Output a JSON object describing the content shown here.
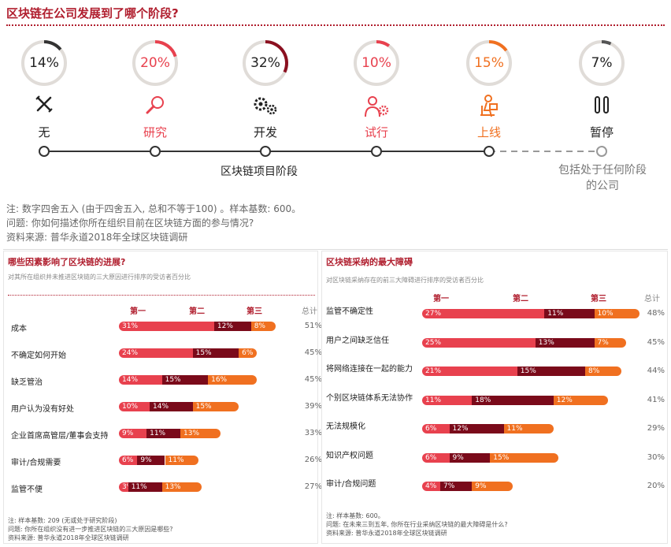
{
  "header": {
    "title": "区块链在公司发展到了哪个阶段?"
  },
  "stages": [
    {
      "pct": "14%",
      "name": "无",
      "value": 14,
      "ring_color": "#333333",
      "icon": "x-icon",
      "name_color": "#222222"
    },
    {
      "pct": "20%",
      "name": "研究",
      "value": 20,
      "ring_color": "#e8414e",
      "icon": "magnifier-icon",
      "name_color": "#e8414e"
    },
    {
      "pct": "32%",
      "name": "开发",
      "value": 32,
      "ring_color": "#8b1020",
      "icon": "gears-icon",
      "name_color": "#222222"
    },
    {
      "pct": "10%",
      "name": "试行",
      "value": 10,
      "ring_color": "#e8414e",
      "icon": "person-gear-icon",
      "name_color": "#e8414e"
    },
    {
      "pct": "15%",
      "name": "上线",
      "value": 15,
      "ring_color": "#f07020",
      "icon": "person-laptop-icon",
      "name_color": "#f07020"
    },
    {
      "pct": "7%",
      "name": "暂停",
      "value": 7,
      "ring_color": "#555555",
      "icon": "pause-icon",
      "name_color": "#222222"
    }
  ],
  "axis": {
    "project_stage_label": "区块链项目阶段",
    "any_stage_label_1": "包括处于任何阶段",
    "any_stage_label_2": "的公司"
  },
  "notes": {
    "line1": "注: 数字四舍五入 (由于四舍五入, 总和不等于100) 。样本基数: 600。",
    "line2": "问题: 你如何描述你所在组织目前在区块链方面的参与情况?",
    "line3": "资料来源: 普华永道2018年全球区块链调研"
  },
  "colors": {
    "first": "#e8414e",
    "second": "#7a0a1a",
    "third": "#f07020",
    "brand": "#b01e2e"
  },
  "chart_data": [
    {
      "type": "bar",
      "stacked": true,
      "title": "哪些因素影响了区块链的进展?",
      "subtitle": "对其所在组织并未推进区块链的三大原因进行排序的受访者百分比",
      "column_headers": [
        "第一",
        "第二",
        "第三",
        "总计"
      ],
      "categories": [
        "成本",
        "不确定如何开始",
        "缺乏管治",
        "用户认为没有好处",
        "企业首席高管层/董事会支持",
        "审计/合规需要",
        "监管不便"
      ],
      "series": [
        {
          "name": "第一",
          "values": [
            31,
            24,
            14,
            10,
            9,
            6,
            3
          ],
          "labels": [
            "31%",
            "24%",
            "14%",
            "10%",
            "9%",
            "6%",
            "3%"
          ]
        },
        {
          "name": "第二",
          "values": [
            12,
            15,
            15,
            14,
            11,
            9,
            11
          ],
          "labels": [
            "12%",
            "15%",
            "15%",
            "14%",
            "11%",
            "9%",
            "11%"
          ]
        },
        {
          "name": "第三",
          "values": [
            8,
            6,
            16,
            15,
            13,
            11,
            13
          ],
          "labels": [
            "8%",
            "6%",
            "16%",
            "15%",
            "13%",
            "11%",
            "13%"
          ]
        }
      ],
      "totals": [
        "51%",
        "45%",
        "45%",
        "39%",
        "33%",
        "26%",
        "27%"
      ],
      "notes": [
        "注: 样本基数: 209 (无或处于研究阶段)",
        "问题: 你所在组织没有进一步推进区块链的三大原因是哪些?",
        "资料来源: 普华永道2018年全球区块链调研"
      ]
    },
    {
      "type": "bar",
      "stacked": true,
      "title": "区块链采纳的最大障碍",
      "subtitle": "对区块链采纳存在的前三大障碍进行排序的受访者百分比",
      "column_headers": [
        "第一",
        "第二",
        "第三",
        "总计"
      ],
      "categories": [
        "监管不确定性",
        "用户之间缺乏信任",
        "将网络连接在一起的能力",
        "个别区块链体系无法协作",
        "无法规模化",
        "知识产权问题",
        "审计/合规问题"
      ],
      "series": [
        {
          "name": "第一",
          "values": [
            27,
            25,
            21,
            11,
            6,
            6,
            4
          ],
          "labels": [
            "27%",
            "25%",
            "21%",
            "11%",
            "6%",
            "6%",
            "4%"
          ]
        },
        {
          "name": "第二",
          "values": [
            11,
            13,
            15,
            18,
            12,
            9,
            7
          ],
          "labels": [
            "11%",
            "13%",
            "15%",
            "18%",
            "12%",
            "9%",
            "7%"
          ]
        },
        {
          "name": "第三",
          "values": [
            10,
            7,
            8,
            12,
            11,
            15,
            9
          ],
          "labels": [
            "10%",
            "7%",
            "8%",
            "12%",
            "11%",
            "15%",
            "9%"
          ]
        }
      ],
      "totals": [
        "48%",
        "45%",
        "44%",
        "41%",
        "29%",
        "30%",
        "20%"
      ],
      "notes": [
        "注: 样本基数: 600。",
        "问题: 在未来三到五年, 你所在行业采纳区块链的最大障碍是什么?",
        "资料来源: 普华永道2018年全球区块链调研"
      ]
    }
  ]
}
